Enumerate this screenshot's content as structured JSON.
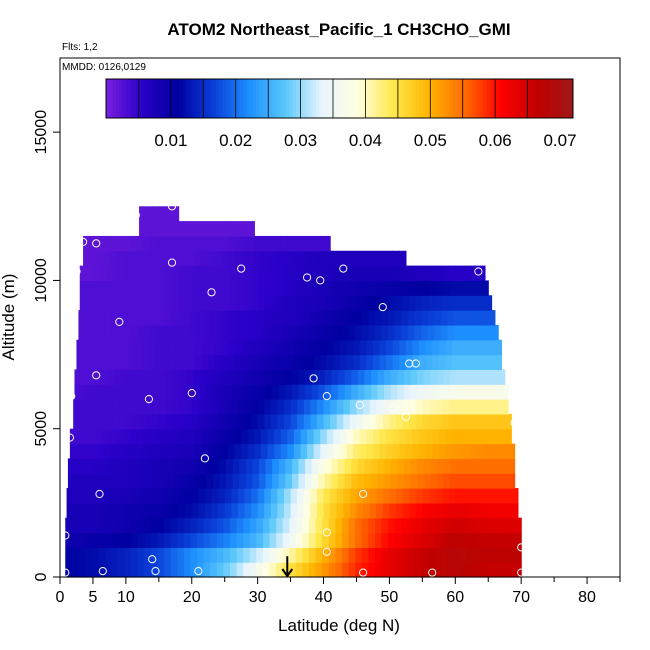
{
  "chart_data": {
    "type": "heatmap",
    "title": "ATOM2 Northeast_Pacific_1 CH3CHO_GMI",
    "flights_label": "Flts: 1,2",
    "dates_label": "MMDD: 0126,0129",
    "xlabel": "Latitude (deg N)",
    "ylabel": "Altitude (m)",
    "xlim": [
      0,
      85
    ],
    "ylim": [
      0,
      17500
    ],
    "x_ticks": [
      0,
      5,
      10,
      20,
      30,
      40,
      50,
      60,
      70,
      80
    ],
    "y_ticks": [
      0,
      5000,
      10000,
      15000
    ],
    "colorbar": {
      "range": [
        0.0,
        0.072
      ],
      "ticks": [
        0.01,
        0.02,
        0.03,
        0.04,
        0.05,
        0.06,
        0.07
      ],
      "tick_labels": [
        "0.01",
        "0.02",
        "0.03",
        "0.04",
        "0.05",
        "0.06",
        "0.07"
      ],
      "colors": [
        "#7a1fe0",
        "#2a00c8",
        "#0000a0",
        "#0a3fd8",
        "#1e90ff",
        "#5ac8fa",
        "#e8f4ff",
        "#ffffe0",
        "#ffe84a",
        "#ffb400",
        "#ff6a00",
        "#ff0000",
        "#c00000",
        "#a01818"
      ]
    },
    "field_rows": [
      {
        "alt": 250,
        "xmax": 70,
        "values": [
          0.011,
          0.012,
          0.014,
          0.017,
          0.022,
          0.028,
          0.036,
          0.045,
          0.052,
          0.059,
          0.063,
          0.066,
          0.068,
          0.066
        ]
      },
      {
        "alt": 750,
        "xmax": 70,
        "values": [
          0.011,
          0.012,
          0.014,
          0.017,
          0.022,
          0.026,
          0.032,
          0.041,
          0.05,
          0.058,
          0.063,
          0.066,
          0.068,
          0.067
        ]
      },
      {
        "alt": 1250,
        "xmax": 70,
        "values": [
          0.009,
          0.01,
          0.011,
          0.013,
          0.017,
          0.021,
          0.026,
          0.035,
          0.046,
          0.055,
          0.061,
          0.064,
          0.067,
          0.066
        ]
      },
      {
        "alt": 1750,
        "xmax": 70,
        "values": [
          0.008,
          0.008,
          0.009,
          0.011,
          0.014,
          0.018,
          0.024,
          0.033,
          0.045,
          0.055,
          0.06,
          0.063,
          0.065,
          0.064
        ]
      },
      {
        "alt": 2250,
        "xmax": 69.5,
        "values": [
          0.008,
          0.008,
          0.009,
          0.01,
          0.012,
          0.016,
          0.022,
          0.032,
          0.045,
          0.053,
          0.058,
          0.061,
          0.063,
          0.062
        ]
      },
      {
        "alt": 2750,
        "xmax": 69.5,
        "values": [
          0.007,
          0.007,
          0.008,
          0.009,
          0.011,
          0.014,
          0.02,
          0.031,
          0.044,
          0.051,
          0.055,
          0.058,
          0.06,
          0.06
        ]
      },
      {
        "alt": 3250,
        "xmax": 69,
        "values": [
          0.007,
          0.007,
          0.007,
          0.008,
          0.01,
          0.013,
          0.018,
          0.028,
          0.041,
          0.049,
          0.052,
          0.055,
          0.057,
          0.057
        ]
      },
      {
        "alt": 3750,
        "xmax": 69,
        "values": [
          0.006,
          0.006,
          0.007,
          0.008,
          0.009,
          0.012,
          0.017,
          0.026,
          0.038,
          0.046,
          0.05,
          0.053,
          0.055,
          0.055
        ]
      },
      {
        "alt": 4250,
        "xmax": 69,
        "values": [
          0.005,
          0.005,
          0.006,
          0.007,
          0.008,
          0.011,
          0.015,
          0.022,
          0.034,
          0.043,
          0.047,
          0.05,
          0.052,
          0.053
        ]
      },
      {
        "alt": 4750,
        "xmax": 68.5,
        "values": [
          0.004,
          0.004,
          0.005,
          0.006,
          0.007,
          0.01,
          0.013,
          0.019,
          0.03,
          0.04,
          0.045,
          0.048,
          0.05,
          0.05
        ]
      },
      {
        "alt": 5250,
        "xmax": 68.5,
        "values": [
          0.004,
          0.004,
          0.004,
          0.005,
          0.006,
          0.009,
          0.012,
          0.017,
          0.026,
          0.035,
          0.042,
          0.046,
          0.048,
          0.048
        ]
      },
      {
        "alt": 5750,
        "xmax": 68,
        "values": [
          0.004,
          0.004,
          0.004,
          0.004,
          0.005,
          0.008,
          0.011,
          0.015,
          0.022,
          0.03,
          0.036,
          0.04,
          0.042,
          0.042
        ]
      },
      {
        "alt": 6250,
        "xmax": 68,
        "values": [
          0.003,
          0.004,
          0.004,
          0.004,
          0.005,
          0.008,
          0.01,
          0.013,
          0.018,
          0.025,
          0.031,
          0.035,
          0.037,
          0.037
        ]
      },
      {
        "alt": 6750,
        "xmax": 67.5,
        "values": [
          0.003,
          0.003,
          0.004,
          0.004,
          0.005,
          0.007,
          0.009,
          0.011,
          0.014,
          0.019,
          0.025,
          0.029,
          0.031,
          0.031
        ]
      },
      {
        "alt": 7250,
        "xmax": 67,
        "values": [
          0.003,
          0.003,
          0.003,
          0.004,
          0.004,
          0.006,
          0.008,
          0.01,
          0.012,
          0.015,
          0.02,
          0.025,
          0.027,
          0.027
        ]
      },
      {
        "alt": 7750,
        "xmax": 67,
        "values": [
          0.003,
          0.003,
          0.003,
          0.004,
          0.004,
          0.005,
          0.007,
          0.009,
          0.011,
          0.013,
          0.017,
          0.022,
          0.025,
          0.025
        ]
      },
      {
        "alt": 8250,
        "xmax": 66.5,
        "values": [
          0.003,
          0.003,
          0.003,
          0.004,
          0.004,
          0.005,
          0.006,
          0.008,
          0.01,
          0.012,
          0.015,
          0.019,
          0.022,
          0.022
        ]
      },
      {
        "alt": 8750,
        "xmax": 66,
        "values": [
          0.003,
          0.003,
          0.003,
          0.003,
          0.004,
          0.005,
          0.006,
          0.007,
          0.009,
          0.011,
          0.013,
          0.016,
          0.018,
          0.018
        ]
      },
      {
        "alt": 9250,
        "xmax": 65.5,
        "values": [
          0.003,
          0.003,
          0.003,
          0.003,
          0.004,
          0.004,
          0.005,
          0.007,
          0.008,
          0.01,
          0.012,
          0.014,
          0.015,
          0.015
        ]
      },
      {
        "alt": 9750,
        "xmax": 65,
        "values": [
          0.003,
          0.003,
          0.003,
          0.003,
          0.004,
          0.004,
          0.005,
          0.006,
          0.008,
          0.009,
          0.01,
          0.011,
          0.012,
          0.012
        ]
      },
      {
        "alt": 10250,
        "xmax": 64.5,
        "values": [
          0.002,
          0.002,
          0.003,
          0.003,
          0.004,
          0.004,
          0.005,
          0.006,
          0.007,
          0.008,
          0.008,
          0.007,
          0.006,
          0.006
        ]
      },
      {
        "alt": 10750,
        "xmax": 52.5,
        "values": [
          0.002,
          0.002,
          0.003,
          0.003,
          0.003,
          0.004,
          0.005,
          0.006,
          0.007,
          0.007,
          0.007,
          0.007,
          0.007,
          0.007
        ]
      },
      {
        "alt": 11250,
        "xmax": 41,
        "values": [
          0.002,
          0.002,
          0.002,
          0.003,
          0.003,
          0.003,
          0.004,
          0.004,
          0.004,
          0.004,
          0.004,
          0.004,
          0.004,
          0.004
        ]
      },
      {
        "alt": 11750,
        "xmax": 29.5,
        "values": [
          0.002,
          0.002,
          0.002,
          0.002,
          0.002,
          0.002,
          0.002,
          0.002,
          0.002,
          0.002,
          0.002,
          0.002,
          0.002,
          0.002
        ]
      },
      {
        "alt": 12250,
        "xmax": 18,
        "values": [
          0.002,
          0.002,
          0.002,
          0.002,
          0.002,
          0.002,
          0.002,
          0.002,
          0.002,
          0.002,
          0.002,
          0.002,
          0.002,
          0.002
        ]
      }
    ],
    "field_xmin_by_alt": [
      [
        0,
        0.8
      ],
      [
        1000,
        0.8
      ],
      [
        2000,
        1.0
      ],
      [
        3000,
        1.2
      ],
      [
        4000,
        1.5
      ],
      [
        5000,
        2.0
      ],
      [
        6000,
        2.2
      ],
      [
        7000,
        2.5
      ],
      [
        8000,
        2.8
      ],
      [
        9000,
        3.0
      ],
      [
        10000,
        3.0
      ],
      [
        10750,
        3.5
      ],
      [
        11250,
        3.5
      ],
      [
        11750,
        12
      ],
      [
        12250,
        12
      ]
    ],
    "profile_x": [
      0,
      5,
      10,
      15,
      20,
      25,
      30,
      35,
      40,
      45,
      50,
      55,
      60,
      65
    ],
    "sample_points": [
      {
        "lat": 0.8,
        "alt": 150
      },
      {
        "lat": 0.8,
        "alt": 1400
      },
      {
        "lat": 1.5,
        "alt": 4700
      },
      {
        "lat": 1.7,
        "alt": 6100
      },
      {
        "lat": 6.5,
        "alt": 200
      },
      {
        "lat": 6,
        "alt": 2800
      },
      {
        "lat": 5.5,
        "alt": 6800
      },
      {
        "lat": 9,
        "alt": 8600
      },
      {
        "lat": 2.5,
        "alt": 10300
      },
      {
        "lat": 3.5,
        "alt": 11300
      },
      {
        "lat": 5.5,
        "alt": 11250
      },
      {
        "lat": 11.5,
        "alt": 12200
      },
      {
        "lat": 17,
        "alt": 12500
      },
      {
        "lat": 14.5,
        "alt": 200
      },
      {
        "lat": 14,
        "alt": 600
      },
      {
        "lat": 13.5,
        "alt": 6000
      },
      {
        "lat": 17,
        "alt": 10600
      },
      {
        "lat": 20,
        "alt": 6200
      },
      {
        "lat": 22,
        "alt": 4000
      },
      {
        "lat": 23,
        "alt": 9600
      },
      {
        "lat": 21,
        "alt": 200
      },
      {
        "lat": 27.5,
        "alt": 10400
      },
      {
        "lat": 37.5,
        "alt": 10100
      },
      {
        "lat": 39.5,
        "alt": 10000
      },
      {
        "lat": 43,
        "alt": 10400
      },
      {
        "lat": 49,
        "alt": 9100
      },
      {
        "lat": 38.5,
        "alt": 6700
      },
      {
        "lat": 40.5,
        "alt": 6100
      },
      {
        "lat": 45.5,
        "alt": 5800
      },
      {
        "lat": 50.5,
        "alt": 5700
      },
      {
        "lat": 53,
        "alt": 7200
      },
      {
        "lat": 54,
        "alt": 7200
      },
      {
        "lat": 52.5,
        "alt": 5400
      },
      {
        "lat": 46,
        "alt": 2800
      },
      {
        "lat": 40.5,
        "alt": 1500
      },
      {
        "lat": 40.5,
        "alt": 850
      },
      {
        "lat": 46,
        "alt": 150
      },
      {
        "lat": 56.5,
        "alt": 150
      },
      {
        "lat": 63.5,
        "alt": 10300
      },
      {
        "lat": 69,
        "alt": 5200
      },
      {
        "lat": 70,
        "alt": 1000
      },
      {
        "lat": 70,
        "alt": 150
      }
    ],
    "arrow": {
      "lat": 34.5,
      "alt_top": 700,
      "alt_bottom": 0
    }
  }
}
